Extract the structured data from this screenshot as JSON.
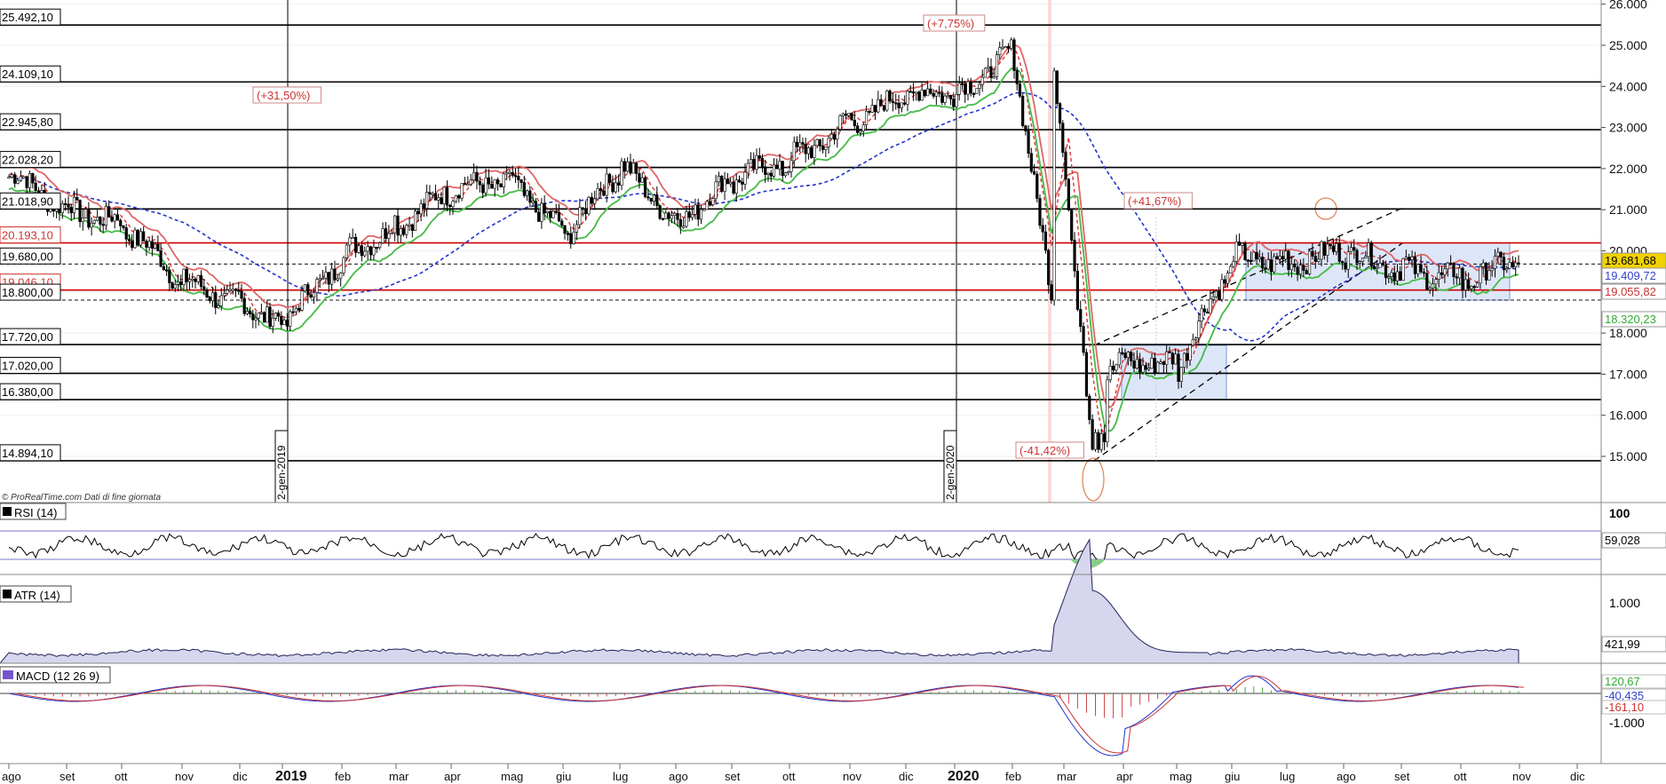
{
  "watermark": "© ProRealTime.com  Dati di fine giornata",
  "main_panel": {
    "price_axis_ticks": [
      "26.000",
      "25.000",
      "24.000",
      "23.000",
      "22.000",
      "21.000",
      "20.000",
      "19.000",
      "18.000",
      "17.000",
      "16.000",
      "15.000"
    ],
    "price_axis_values": [
      26000,
      25000,
      24000,
      23000,
      22000,
      21000,
      20000,
      19000,
      18000,
      17000,
      16000,
      15000
    ],
    "ylim": [
      13700,
      26400
    ],
    "level_labels": [
      {
        "label": "25.492,10",
        "value": 25492.1,
        "style": "black"
      },
      {
        "label": "24.109,10",
        "value": 24109.1,
        "style": "black"
      },
      {
        "label": "22.945,80",
        "value": 22945.8,
        "style": "black"
      },
      {
        "label": "22.028,20",
        "value": 22028.2,
        "style": "black"
      },
      {
        "label": "21.018,90",
        "value": 21018.9,
        "style": "black"
      },
      {
        "label": "20.193,10",
        "value": 20193.1,
        "style": "red"
      },
      {
        "label": "19.680,00",
        "value": 19680,
        "style": "dashed"
      },
      {
        "label": "19.046,10",
        "value": 19046.1,
        "style": "red"
      },
      {
        "label": "18.800,00",
        "value": 18800,
        "style": "dashed"
      },
      {
        "label": "17.720,00",
        "value": 17720,
        "style": "black"
      },
      {
        "label": "17.020,00",
        "value": 17020,
        "style": "black"
      },
      {
        "label": "16.380,00",
        "value": 16380,
        "style": "black"
      },
      {
        "label": "14.894,10",
        "value": 14894.1,
        "style": "black"
      }
    ],
    "price_badges": [
      {
        "label": "19.681,68",
        "value": 19681.68,
        "color": "#f2d100",
        "text_color": "#000000"
      },
      {
        "label": "19.409,72",
        "value": 19409.72,
        "color": "#ffffff",
        "text_color": "#3344cc"
      },
      {
        "label": "19.055,82",
        "value": 19055.82,
        "color": "#ffffff",
        "text_color": "#cc3333"
      },
      {
        "label": "18.320,23",
        "value": 18320.23,
        "color": "#ffffff",
        "text_color": "#33aa33"
      }
    ],
    "annotations": [
      "(+7,75%)",
      "(+31,50%)",
      "(+41,67%)",
      "(-41,42%)"
    ],
    "date_markers": [
      "2-gen-2019",
      "2-gen-2020"
    ]
  },
  "time_axis": {
    "labels": [
      "ago",
      "set",
      "ott",
      "nov",
      "dic",
      "2019",
      "feb",
      "mar",
      "apr",
      "mag",
      "giu",
      "lug",
      "ago",
      "set",
      "ott",
      "nov",
      "dic",
      "2020",
      "feb",
      "mar",
      "apr",
      "mag",
      "giu",
      "lug",
      "ago",
      "set",
      "ott",
      "nov",
      "dic"
    ],
    "bold": [
      "2019",
      "2020"
    ]
  },
  "rsi_panel": {
    "label": "RSI (14)",
    "ticks": [
      "100"
    ],
    "value_label": "59,028"
  },
  "atr_panel": {
    "label": "ATR (14)",
    "ticks": [
      "1.000"
    ],
    "value_label": "421,99"
  },
  "macd_panel": {
    "label": "MACD (12 26 9)",
    "ticks": [
      "-1.000"
    ],
    "value_labels": [
      "120,67",
      "-40,435",
      "-161,10"
    ]
  },
  "colors": {
    "candle": "#000000",
    "red_line": "#e06666",
    "green_line": "#44bb44",
    "blue_dashed": "#2233cc",
    "red_level": "#cc0000",
    "channel_fill": "#dde6f8"
  },
  "chart_data": {
    "type": "line",
    "title": "",
    "xlabel": "",
    "ylabel": "",
    "x": [
      "2018-08",
      "2018-09",
      "2018-10",
      "2018-11",
      "2018-12",
      "2019-01",
      "2019-02",
      "2019-03",
      "2019-04",
      "2019-05",
      "2019-06",
      "2019-07",
      "2019-08",
      "2019-09",
      "2019-10",
      "2019-11",
      "2019-12",
      "2020-01",
      "2020-02",
      "2020-03",
      "2020-04",
      "2020-05",
      "2020-06",
      "2020-07",
      "2020-08",
      "2020-09",
      "2020-10",
      "2020-11"
    ],
    "series": [
      {
        "values": [
          21800,
          21100,
          20600,
          19200,
          18800,
          18200,
          19900,
          20700,
          21400,
          21800,
          20400,
          22000,
          20800,
          21700,
          22200,
          23200,
          23700,
          23900,
          24800,
          16500,
          17400,
          17200,
          19800,
          19800,
          19900,
          19600,
          19300,
          19680
        ]
      }
    ],
    "ylim": [
      13700,
      26400
    ]
  }
}
